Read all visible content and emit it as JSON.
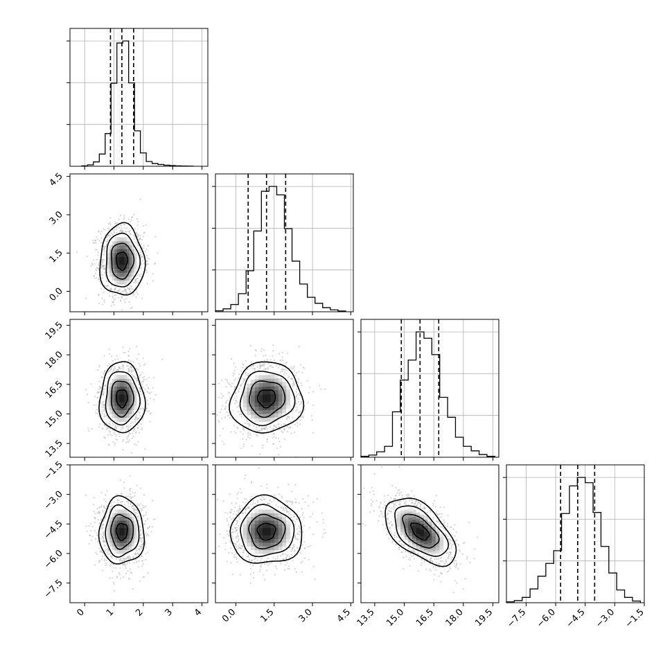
{
  "chart_data": {
    "type": "corner",
    "n_params": 4,
    "params": [
      {
        "range": [
          -0.5,
          4.2
        ],
        "ticks": [
          0,
          1,
          2,
          3,
          4
        ],
        "tick_labels": [
          "0",
          "1",
          "2",
          "3",
          "4"
        ],
        "quantiles": [
          0.88,
          1.27,
          1.67
        ],
        "hist_edges": [
          -0.1,
          0.1,
          0.3,
          0.5,
          0.7,
          0.9,
          1.1,
          1.3,
          1.5,
          1.7,
          1.9,
          2.1,
          2.3,
          2.5,
          2.7,
          2.9,
          3.1,
          3.3,
          3.5,
          3.7
        ],
        "hist_counts": [
          3,
          10,
          32,
          90,
          240,
          610,
          905,
          920,
          612,
          260,
          98,
          35,
          20,
          13,
          8,
          5,
          3,
          2,
          1
        ]
      },
      {
        "range": [
          -0.8,
          4.6
        ],
        "ticks": [
          0.0,
          1.5,
          3.0,
          4.5
        ],
        "tick_labels": [
          "0.0",
          "1.5",
          "3.0",
          "4.5"
        ],
        "quantiles": [
          0.48,
          1.2,
          1.95
        ],
        "hist_edges": [
          -0.8,
          -0.5,
          -0.2,
          0.1,
          0.4,
          0.7,
          1.0,
          1.3,
          1.6,
          1.9,
          2.2,
          2.5,
          2.8,
          3.1,
          3.4,
          3.7,
          4.0,
          4.3
        ],
        "hist_counts": [
          4,
          12,
          30,
          75,
          170,
          335,
          500,
          520,
          485,
          345,
          210,
          115,
          60,
          35,
          17,
          8,
          3
        ]
      },
      {
        "range": [
          12.8,
          19.8
        ],
        "ticks": [
          13.5,
          15.0,
          16.5,
          18.0,
          19.5
        ],
        "tick_labels": [
          "13.5",
          "15.0",
          "16.5",
          "18.0",
          "19.5"
        ],
        "quantiles": [
          14.85,
          15.8,
          16.75
        ],
        "hist_edges": [
          12.8,
          13.2,
          13.6,
          14.0,
          14.4,
          14.8,
          15.2,
          15.6,
          16.0,
          16.4,
          16.8,
          17.2,
          17.6,
          18.0,
          18.4,
          18.8,
          19.2,
          19.6
        ],
        "hist_counts": [
          5,
          12,
          30,
          60,
          250,
          425,
          535,
          690,
          655,
          565,
          330,
          220,
          110,
          60,
          35,
          15,
          5
        ]
      },
      {
        "range": [
          -8.5,
          -1.5
        ],
        "ticks": [
          -7.5,
          -6.0,
          -4.5,
          -3.0,
          -1.5
        ],
        "tick_labels": [
          "−7.5",
          "−6.0",
          "−4.5",
          "−3.0",
          "−1.5"
        ],
        "quantiles": [
          -5.75,
          -4.88,
          -4.02
        ],
        "hist_edges": [
          -8.5,
          -8.1,
          -7.7,
          -7.3,
          -6.9,
          -6.5,
          -6.1,
          -5.7,
          -5.3,
          -4.9,
          -4.5,
          -4.1,
          -3.7,
          -3.3,
          -2.9,
          -2.5,
          -2.1,
          -1.7
        ],
        "hist_counts": [
          4,
          10,
          25,
          65,
          125,
          185,
          245,
          420,
          550,
          590,
          565,
          425,
          265,
          140,
          60,
          25,
          8
        ]
      }
    ],
    "pairs": [
      {
        "row": 1,
        "col": 0,
        "mean": [
          1.27,
          1.2
        ],
        "std": [
          0.38,
          0.7
        ],
        "rho": 0.0
      },
      {
        "row": 2,
        "col": 0,
        "mean": [
          1.27,
          15.8
        ],
        "std": [
          0.38,
          0.9
        ],
        "rho": 0.0
      },
      {
        "row": 2,
        "col": 1,
        "mean": [
          1.2,
          15.8
        ],
        "std": [
          0.7,
          0.9
        ],
        "rho": 0.05
      },
      {
        "row": 3,
        "col": 0,
        "mean": [
          1.27,
          -4.88
        ],
        "std": [
          0.38,
          0.85
        ],
        "rho": 0.0
      },
      {
        "row": 3,
        "col": 1,
        "mean": [
          1.2,
          -4.88
        ],
        "std": [
          0.7,
          0.85
        ],
        "rho": 0.0
      },
      {
        "row": 3,
        "col": 2,
        "mean": [
          15.8,
          -4.88
        ],
        "std": [
          0.9,
          0.85
        ],
        "rho": -0.55
      }
    ],
    "contour_levels_sigma": [
      0.5,
      1.0,
      1.5,
      2.0
    ],
    "grid": true,
    "colors": {
      "line": "#000000",
      "scatter": "#b3b3b3",
      "grid": "#b0b0b0"
    }
  }
}
